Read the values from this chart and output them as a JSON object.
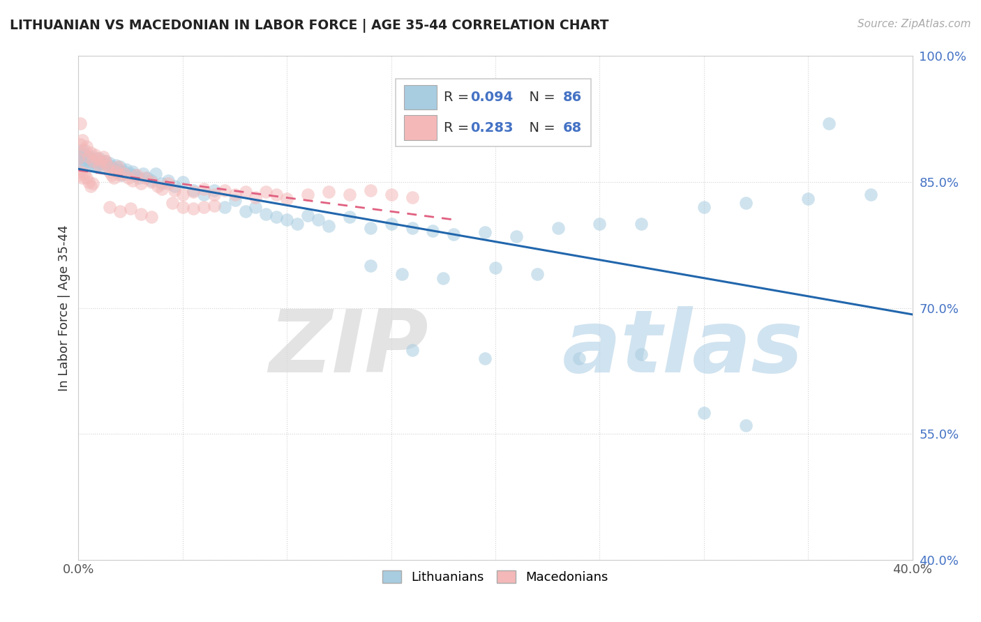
{
  "title": "LITHUANIAN VS MACEDONIAN IN LABOR FORCE | AGE 35-44 CORRELATION CHART",
  "source": "Source: ZipAtlas.com",
  "ylabel": "In Labor Force | Age 35-44",
  "xmin": 0.0,
  "xmax": 0.4,
  "ymin": 0.4,
  "ymax": 1.0,
  "y_ticks": [
    0.4,
    0.55,
    0.7,
    0.85,
    1.0
  ],
  "y_tick_labels": [
    "40.0%",
    "55.0%",
    "70.0%",
    "85.0%",
    "100.0%"
  ],
  "legend_label1": "Lithuanians",
  "legend_label2": "Macedonians",
  "color_blue": "#a8cce0",
  "color_pink": "#f4b8b8",
  "color_blue_line": "#2166ac",
  "color_pink_line": "#e06080",
  "R1": 0.094,
  "N1": 86,
  "R2": 0.283,
  "N2": 68,
  "blue_x": [
    0.0,
    0.001,
    0.001,
    0.002,
    0.002,
    0.003,
    0.003,
    0.004,
    0.005,
    0.005,
    0.006,
    0.006,
    0.007,
    0.007,
    0.008,
    0.008,
    0.009,
    0.01,
    0.01,
    0.011,
    0.011,
    0.012,
    0.013,
    0.014,
    0.015,
    0.016,
    0.017,
    0.018,
    0.019,
    0.02,
    0.021,
    0.022,
    0.023,
    0.025,
    0.026,
    0.027,
    0.029,
    0.031,
    0.033,
    0.035,
    0.037,
    0.04,
    0.043,
    0.046,
    0.05,
    0.055,
    0.06,
    0.065,
    0.07,
    0.075,
    0.08,
    0.085,
    0.09,
    0.095,
    0.1,
    0.105,
    0.11,
    0.115,
    0.12,
    0.13,
    0.14,
    0.15,
    0.16,
    0.17,
    0.18,
    0.195,
    0.21,
    0.23,
    0.25,
    0.27,
    0.3,
    0.32,
    0.35,
    0.36,
    0.38,
    0.14,
    0.155,
    0.175,
    0.2,
    0.22,
    0.16,
    0.195,
    0.24,
    0.27,
    0.3,
    0.32
  ],
  "blue_y": [
    0.88,
    0.875,
    0.885,
    0.87,
    0.888,
    0.876,
    0.882,
    0.878,
    0.874,
    0.88,
    0.872,
    0.878,
    0.875,
    0.88,
    0.868,
    0.875,
    0.87,
    0.873,
    0.878,
    0.872,
    0.875,
    0.868,
    0.875,
    0.87,
    0.872,
    0.868,
    0.865,
    0.87,
    0.865,
    0.868,
    0.858,
    0.862,
    0.865,
    0.86,
    0.862,
    0.858,
    0.855,
    0.86,
    0.855,
    0.852,
    0.86,
    0.848,
    0.852,
    0.845,
    0.85,
    0.84,
    0.835,
    0.84,
    0.82,
    0.828,
    0.815,
    0.82,
    0.812,
    0.808,
    0.805,
    0.8,
    0.81,
    0.805,
    0.798,
    0.808,
    0.795,
    0.8,
    0.795,
    0.792,
    0.788,
    0.79,
    0.785,
    0.795,
    0.8,
    0.8,
    0.82,
    0.825,
    0.83,
    0.92,
    0.835,
    0.75,
    0.74,
    0.735,
    0.748,
    0.74,
    0.65,
    0.64,
    0.64,
    0.645,
    0.575,
    0.56
  ],
  "pink_x": [
    0.0,
    0.001,
    0.001,
    0.002,
    0.003,
    0.004,
    0.005,
    0.006,
    0.007,
    0.008,
    0.009,
    0.01,
    0.011,
    0.012,
    0.013,
    0.014,
    0.015,
    0.016,
    0.017,
    0.018,
    0.019,
    0.02,
    0.022,
    0.024,
    0.026,
    0.028,
    0.03,
    0.032,
    0.035,
    0.038,
    0.04,
    0.043,
    0.046,
    0.05,
    0.055,
    0.06,
    0.065,
    0.07,
    0.075,
    0.08,
    0.085,
    0.09,
    0.095,
    0.1,
    0.11,
    0.12,
    0.13,
    0.14,
    0.15,
    0.16,
    0.015,
    0.02,
    0.025,
    0.03,
    0.035,
    0.0,
    0.001,
    0.002,
    0.003,
    0.004,
    0.005,
    0.006,
    0.007,
    0.045,
    0.05,
    0.055,
    0.06,
    0.065
  ],
  "pink_y": [
    0.878,
    0.92,
    0.895,
    0.9,
    0.888,
    0.892,
    0.88,
    0.885,
    0.875,
    0.882,
    0.878,
    0.87,
    0.875,
    0.88,
    0.875,
    0.87,
    0.862,
    0.858,
    0.855,
    0.862,
    0.868,
    0.858,
    0.86,
    0.855,
    0.852,
    0.858,
    0.848,
    0.855,
    0.85,
    0.845,
    0.842,
    0.848,
    0.84,
    0.835,
    0.838,
    0.842,
    0.835,
    0.84,
    0.835,
    0.838,
    0.832,
    0.838,
    0.835,
    0.83,
    0.835,
    0.838,
    0.835,
    0.84,
    0.835,
    0.832,
    0.82,
    0.815,
    0.818,
    0.812,
    0.808,
    0.858,
    0.862,
    0.855,
    0.86,
    0.855,
    0.85,
    0.845,
    0.848,
    0.825,
    0.82,
    0.818,
    0.82,
    0.822
  ]
}
